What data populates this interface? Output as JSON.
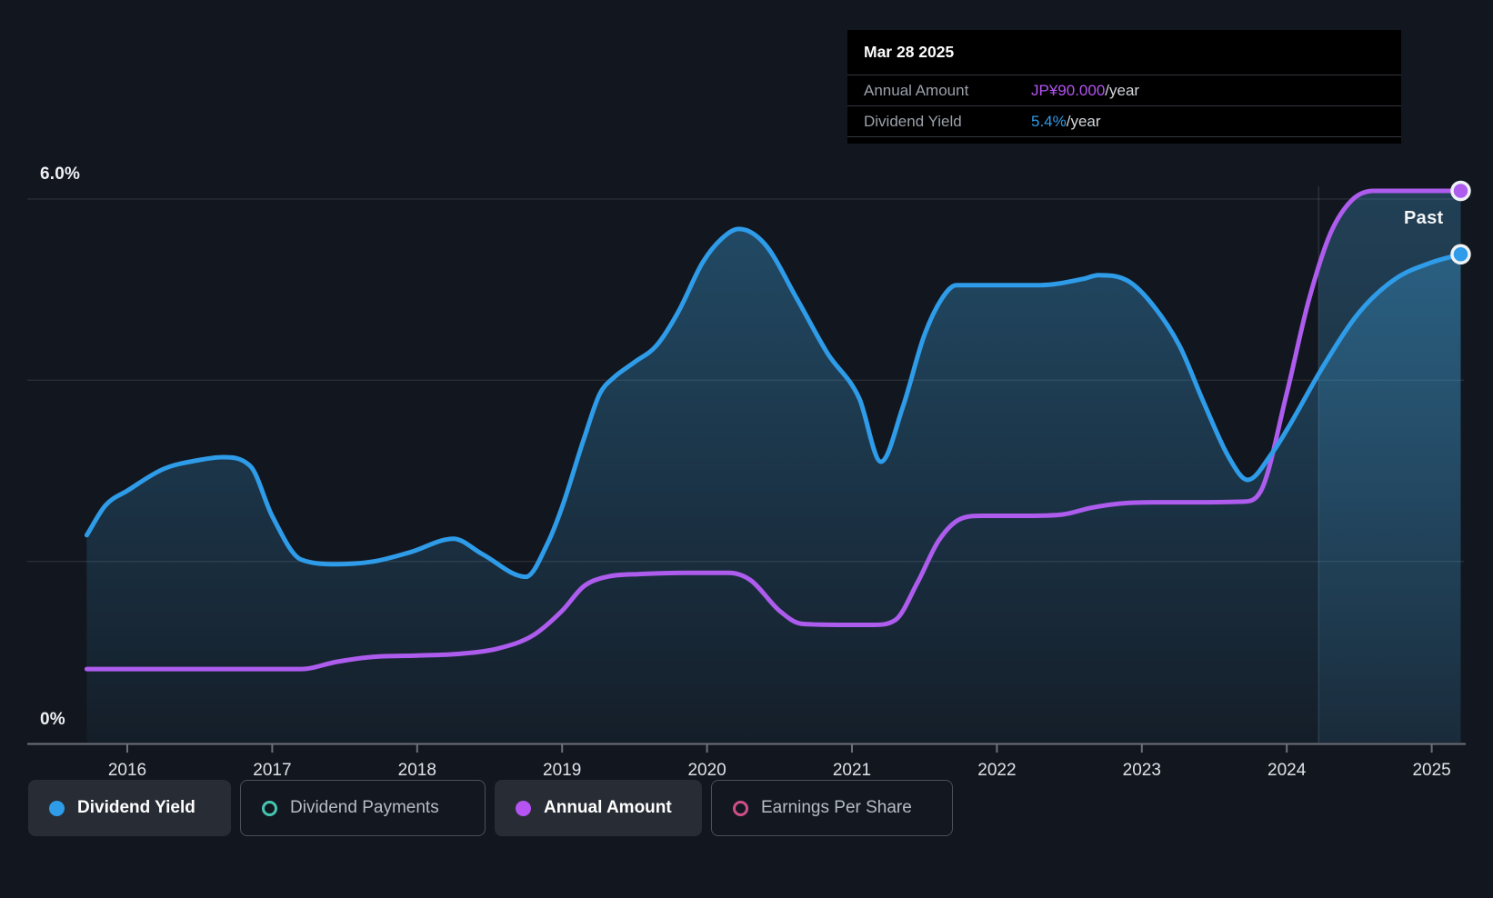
{
  "past_label": "Past",
  "y_axis": {
    "top_label": "6.0%",
    "bottom_label": "0%"
  },
  "tooltip": {
    "date": "Mar 28 2025",
    "rows": [
      {
        "label": "Annual Amount",
        "value": "JP¥90.000",
        "suffix": "/year",
        "color": "#b554f2"
      },
      {
        "label": "Dividend Yield",
        "value": "5.4%",
        "suffix": "/year",
        "color": "#2e9ce9"
      }
    ]
  },
  "legend": [
    {
      "label": "Dividend Yield",
      "color": "#2e9ce9",
      "style": "filled",
      "active": true
    },
    {
      "label": "Dividend Payments",
      "color": "#46c6b2",
      "style": "ring",
      "active": false
    },
    {
      "label": "Annual Amount",
      "color": "#b554f2",
      "style": "filled",
      "active": true
    },
    {
      "label": "Earnings Per Share",
      "color": "#d04f87",
      "style": "ring",
      "active": false
    }
  ],
  "chart_data": {
    "type": "area",
    "title": "Dividend history with yield and annual amount",
    "x_ticks": [
      "2016",
      "2017",
      "2018",
      "2019",
      "2020",
      "2021",
      "2022",
      "2023",
      "2024",
      "2025"
    ],
    "x_range": [
      2015.72,
      2025.25
    ],
    "y_axis_pct": {
      "min": 0,
      "max": 6.09,
      "gridlines": [
        2,
        4,
        6
      ],
      "grid_on": true
    },
    "amount_axis": {
      "top_amount": 90,
      "top_amount_pct_equiv": 6.09,
      "unit": "JP¥"
    },
    "past_band_start_year": 2024.22,
    "last_point_date": "Mar 28 2025",
    "series": [
      {
        "name": "Dividend Yield",
        "unit": "%",
        "color": "#2e9ce9",
        "fill": true,
        "points": [
          [
            2015.72,
            2.29
          ],
          [
            2015.85,
            2.62
          ],
          [
            2016.0,
            2.78
          ],
          [
            2016.25,
            3.02
          ],
          [
            2016.5,
            3.12
          ],
          [
            2016.66,
            3.15
          ],
          [
            2016.85,
            3.05
          ],
          [
            2017.0,
            2.5
          ],
          [
            2017.2,
            2.02
          ],
          [
            2017.45,
            1.97
          ],
          [
            2017.7,
            2.0
          ],
          [
            2017.95,
            2.1
          ],
          [
            2018.25,
            2.25
          ],
          [
            2018.45,
            2.08
          ],
          [
            2018.75,
            1.83
          ],
          [
            2018.9,
            2.2
          ],
          [
            2019.0,
            2.6
          ],
          [
            2019.15,
            3.35
          ],
          [
            2019.26,
            3.85
          ],
          [
            2019.35,
            4.02
          ],
          [
            2019.5,
            4.2
          ],
          [
            2019.65,
            4.38
          ],
          [
            2019.8,
            4.75
          ],
          [
            2019.97,
            5.3
          ],
          [
            2020.1,
            5.56
          ],
          [
            2020.22,
            5.67
          ],
          [
            2020.4,
            5.5
          ],
          [
            2020.62,
            4.9
          ],
          [
            2020.83,
            4.3
          ],
          [
            2021.05,
            3.8
          ],
          [
            2021.2,
            3.1
          ],
          [
            2021.35,
            3.7
          ],
          [
            2021.5,
            4.5
          ],
          [
            2021.62,
            4.9
          ],
          [
            2021.72,
            5.05
          ],
          [
            2022.0,
            5.05
          ],
          [
            2022.3,
            5.05
          ],
          [
            2022.6,
            5.12
          ],
          [
            2022.7,
            5.16
          ],
          [
            2022.9,
            5.1
          ],
          [
            2023.05,
            4.88
          ],
          [
            2023.26,
            4.38
          ],
          [
            2023.42,
            3.78
          ],
          [
            2023.6,
            3.15
          ],
          [
            2023.73,
            2.9
          ],
          [
            2023.9,
            3.2
          ],
          [
            2024.0,
            3.45
          ],
          [
            2024.25,
            4.15
          ],
          [
            2024.5,
            4.75
          ],
          [
            2024.75,
            5.12
          ],
          [
            2025.0,
            5.3
          ],
          [
            2025.2,
            5.39
          ]
        ],
        "end_value_pct": 5.39
      },
      {
        "name": "Annual Amount",
        "unit": "JP¥/year",
        "color": "#ad5cee",
        "fill": false,
        "points_amount": [
          [
            2015.72,
            12
          ],
          [
            2016.3,
            12
          ],
          [
            2016.9,
            12
          ],
          [
            2017.2,
            12
          ],
          [
            2017.45,
            13.2
          ],
          [
            2017.7,
            14
          ],
          [
            2018.0,
            14.2
          ],
          [
            2018.3,
            14.5
          ],
          [
            2018.55,
            15.3
          ],
          [
            2018.8,
            17.5
          ],
          [
            2019.0,
            21.5
          ],
          [
            2019.15,
            25.5
          ],
          [
            2019.3,
            27
          ],
          [
            2019.55,
            27.5
          ],
          [
            2019.85,
            27.7
          ],
          [
            2020.15,
            27.7
          ],
          [
            2020.3,
            26.5
          ],
          [
            2020.5,
            21.5
          ],
          [
            2020.65,
            19.4
          ],
          [
            2020.9,
            19.2
          ],
          [
            2021.15,
            19.2
          ],
          [
            2021.3,
            20
          ],
          [
            2021.45,
            26
          ],
          [
            2021.6,
            33
          ],
          [
            2021.75,
            36.5
          ],
          [
            2021.9,
            37
          ],
          [
            2022.2,
            37
          ],
          [
            2022.45,
            37.2
          ],
          [
            2022.65,
            38.3
          ],
          [
            2022.85,
            39
          ],
          [
            2023.1,
            39.2
          ],
          [
            2023.4,
            39.2
          ],
          [
            2023.7,
            39.3
          ],
          [
            2023.82,
            41
          ],
          [
            2024.0,
            57
          ],
          [
            2024.15,
            72
          ],
          [
            2024.3,
            83
          ],
          [
            2024.45,
            88.5
          ],
          [
            2024.6,
            90
          ],
          [
            2024.9,
            90
          ],
          [
            2025.2,
            90
          ]
        ],
        "end_value_amount": 90
      }
    ]
  }
}
